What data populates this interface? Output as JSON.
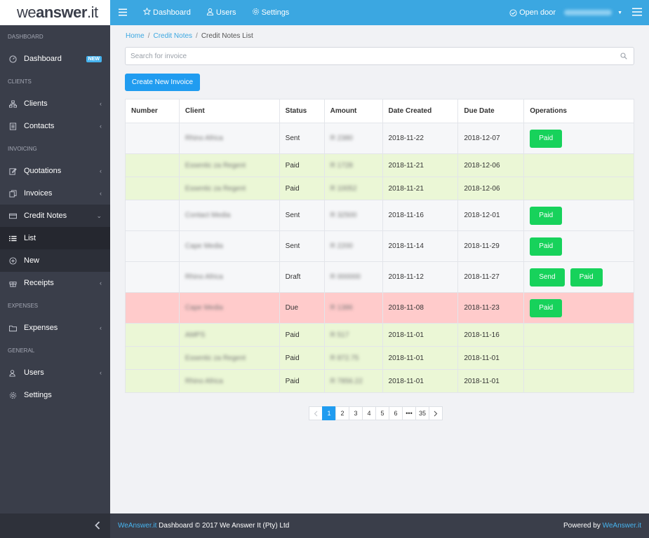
{
  "logo": {
    "we": "we",
    "answer": "answer",
    "dot_it": ".it"
  },
  "sidebar": {
    "sections": {
      "dashboard": "DASHBOARD",
      "clients": "CLIENTS",
      "invoicing": "INVOICING",
      "expenses": "EXPENSES",
      "general": "GENERAL"
    },
    "items": {
      "dashboard": {
        "label": "Dashboard",
        "icon": "gauge-icon",
        "badge": "NEW"
      },
      "clients": {
        "label": "Clients",
        "icon": "sitemap-icon"
      },
      "contacts": {
        "label": "Contacts",
        "icon": "address-book-icon"
      },
      "quotations": {
        "label": "Quotations",
        "icon": "edit-icon"
      },
      "invoices": {
        "label": "Invoices",
        "icon": "copy-icon"
      },
      "credit_notes": {
        "label": "Credit Notes",
        "icon": "credit-card-icon"
      },
      "list": {
        "label": "List",
        "icon": "list-icon"
      },
      "new": {
        "label": "New",
        "icon": "plus-circle-icon"
      },
      "receipts": {
        "label": "Receipts",
        "icon": "gift-icon"
      },
      "expenses": {
        "label": "Expenses",
        "icon": "folder-icon"
      },
      "users": {
        "label": "Users",
        "icon": "users-icon"
      },
      "settings": {
        "label": "Settings",
        "icon": "gear-icon"
      }
    },
    "collapse_icon": "chevron-left-icon"
  },
  "topbar": {
    "nav": {
      "dashboard": "Dashboard",
      "users": "Users",
      "settings": "Settings"
    },
    "open_door": "Open door",
    "colors": {
      "primary": "#3ba7e1"
    }
  },
  "breadcrumb": {
    "home": "Home",
    "credit_notes": "Credit Notes",
    "current": "Credit Notes List"
  },
  "search": {
    "placeholder": "Search for invoice",
    "value": ""
  },
  "create_button": "Create New Invoice",
  "table": {
    "headers": {
      "number": "Number",
      "client": "Client",
      "status": "Status",
      "amount": "Amount",
      "date_created": "Date Created",
      "due_date": "Due Date",
      "operations": "Operations"
    },
    "rows": [
      {
        "client": "Rhino Africa",
        "status": "Sent",
        "amount": "R 2380",
        "date_created": "2018-11-22",
        "due_date": "2018-12-07",
        "ops": [
          "Paid"
        ]
      },
      {
        "client": "Essentic za Regent",
        "status": "Paid",
        "amount": "R 1728",
        "date_created": "2018-11-21",
        "due_date": "2018-12-06",
        "ops": []
      },
      {
        "client": "Essentic za Regent",
        "status": "Paid",
        "amount": "R 10052",
        "date_created": "2018-11-21",
        "due_date": "2018-12-06",
        "ops": []
      },
      {
        "client": "Contact Media",
        "status": "Sent",
        "amount": "R 32500",
        "date_created": "2018-11-16",
        "due_date": "2018-12-01",
        "ops": [
          "Paid"
        ]
      },
      {
        "client": "Cape Media",
        "status": "Sent",
        "amount": "R 2200",
        "date_created": "2018-11-14",
        "due_date": "2018-11-29",
        "ops": [
          "Paid"
        ]
      },
      {
        "client": "Rhino Africa",
        "status": "Draft",
        "amount": "R 000000",
        "date_created": "2018-11-12",
        "due_date": "2018-11-27",
        "ops": [
          "Send",
          "Paid"
        ]
      },
      {
        "client": "Cape Media",
        "status": "Due",
        "amount": "R 1386",
        "date_created": "2018-11-08",
        "due_date": "2018-11-23",
        "ops": [
          "Paid"
        ]
      },
      {
        "client": "AMPS",
        "status": "Paid",
        "amount": "R 517",
        "date_created": "2018-11-01",
        "due_date": "2018-11-16",
        "ops": []
      },
      {
        "client": "Essentic za Regent",
        "status": "Paid",
        "amount": "R 872.75",
        "date_created": "2018-11-01",
        "due_date": "2018-11-01",
        "ops": []
      },
      {
        "client": "Rhino Africa",
        "status": "Paid",
        "amount": "R 7856.22",
        "date_created": "2018-11-01",
        "due_date": "2018-11-01",
        "ops": []
      }
    ]
  },
  "pagination": {
    "pages": [
      "1",
      "2",
      "3",
      "4",
      "5",
      "6",
      "•••",
      "35"
    ],
    "current": "1"
  },
  "footer": {
    "brand": "WeAnswer.it",
    "text": " Dashboard © 2017 We Answer It (Pty) Ltd",
    "powered_prefix": "Powered by ",
    "powered_link": "WeAnswer.it"
  }
}
